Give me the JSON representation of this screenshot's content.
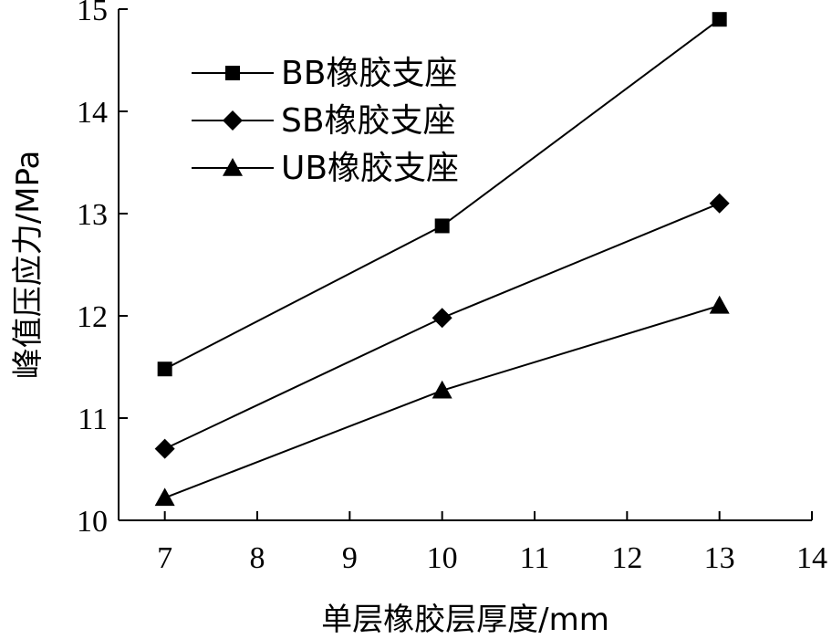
{
  "chart_data": {
    "type": "line",
    "title": "",
    "xlabel": "单层橡胶层厚度/mm",
    "ylabel": "峰值压应力/MPa",
    "xlim": [
      6.5,
      14
    ],
    "ylim": [
      10,
      15
    ],
    "xticks": [
      7,
      8,
      9,
      10,
      11,
      12,
      13,
      14
    ],
    "yticks": [
      10,
      11,
      12,
      13,
      14,
      15
    ],
    "grid": false,
    "legend_position": "top-left",
    "x": [
      7,
      10,
      13
    ],
    "series": [
      {
        "name": "BB橡胶支座",
        "marker": "square",
        "values": [
          11.48,
          12.88,
          14.9
        ]
      },
      {
        "name": "SB橡胶支座",
        "marker": "diamond",
        "values": [
          10.7,
          11.98,
          13.1
        ]
      },
      {
        "name": "UB橡胶支座",
        "marker": "triangle",
        "values": [
          10.22,
          11.27,
          12.1
        ]
      }
    ]
  }
}
